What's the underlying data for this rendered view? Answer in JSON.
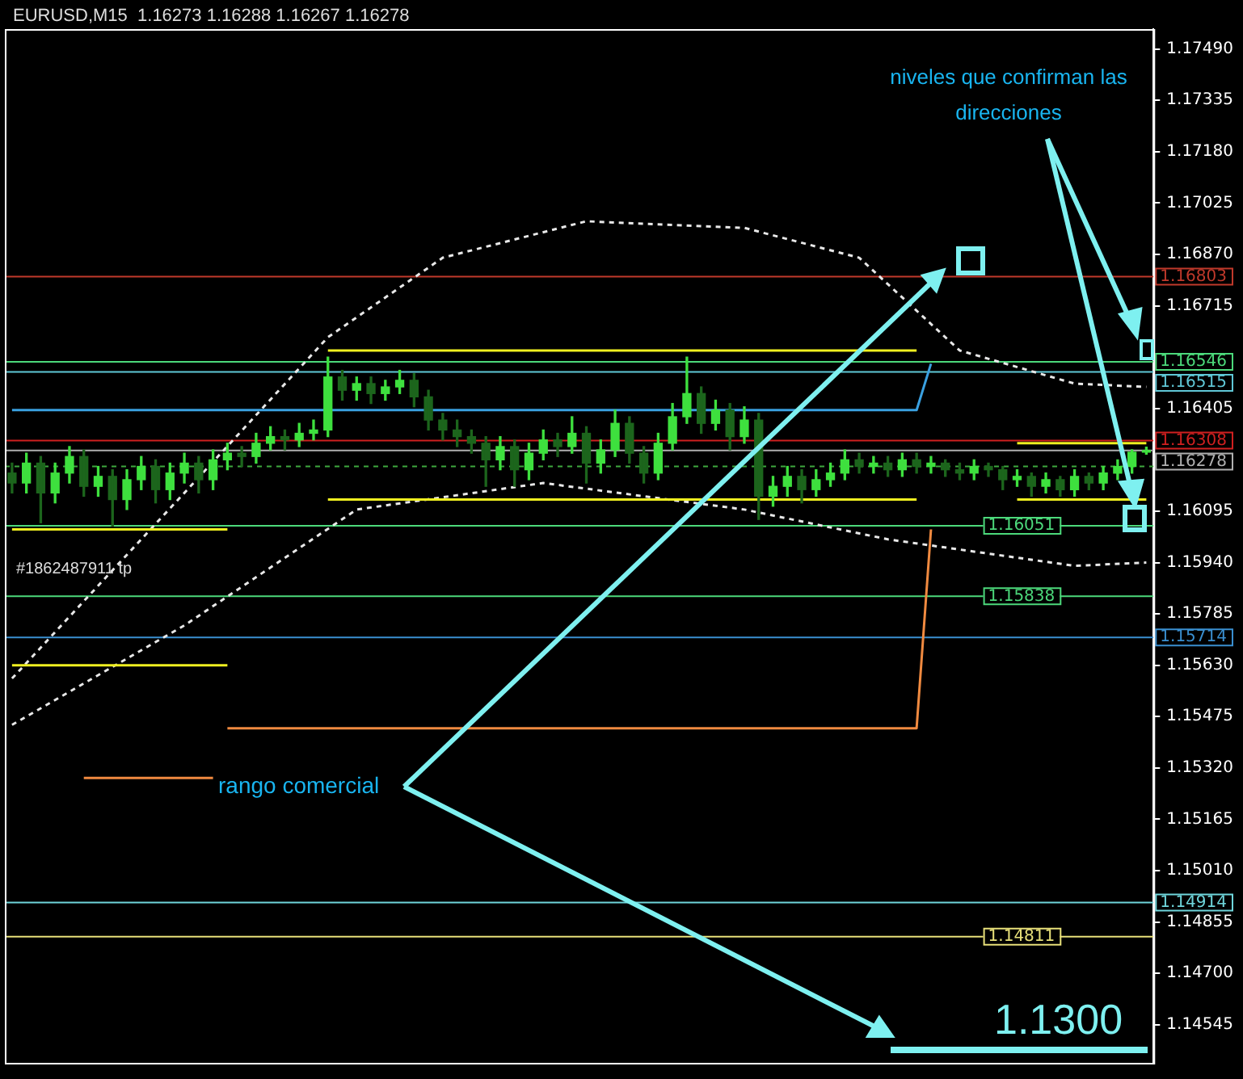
{
  "chart_data": {
    "type": "candlestick",
    "title": "EURUSD,M15  1.16273 1.16288 1.16267 1.16278",
    "colors": [
      "#1c651c",
      "#3ee03e",
      "#1c651c",
      "#3ee03e",
      "#3ee03e",
      "#1c651c",
      "#3ee03e",
      "#1c651c",
      "#3ee03e",
      "#3ee03e",
      "#1c651c",
      "#3ee03e",
      "#3ee03e",
      "#1c651c",
      "#3ee03e",
      "#3ee03e",
      "#1c651c",
      "#3ee03e",
      "#3ee03e",
      "#1c651c",
      "#3ee03e",
      "#3ee03e",
      "#3ee03e",
      "#1c651c",
      "#3ee03e",
      "#1c651c",
      "#3ee03e",
      "#3ee03e",
      "#1c651c",
      "#1c651c",
      "#1c651c",
      "#1c651c",
      "#1c651c",
      "#1c651c",
      "#3ee03e",
      "#1c651c",
      "#3ee03e",
      "#3ee03e",
      "#1c651c",
      "#3ee03e",
      "#1c651c",
      "#3ee03e",
      "#3ee03e",
      "#1c651c",
      "#1c651c",
      "#3ee03e",
      "#3ee03e",
      "#3ee03e",
      "#1c651c",
      "#3ee03e",
      "#1c651c",
      "#3ee03e",
      "#1c651c",
      "#3ee03e",
      "#3ee03e",
      "#1c651c",
      "#3ee03e",
      "#3ee03e",
      "#3ee03e",
      "#1c651c",
      "#3ee03e",
      "#1c651c",
      "#3ee03e",
      "#1c651c",
      "#3ee03e",
      "#1c651c",
      "#1c651c",
      "#3ee03e",
      "#1c651c",
      "#1c651c",
      "#3ee03e",
      "#1c651c",
      "#3ee03e",
      "#1c651c",
      "#3ee03e",
      "#1c651c",
      "#3ee03e",
      "#3ee03e",
      "#3ee03e",
      "#3ee03e"
    ],
    "categories": [
      null,
      null,
      null,
      null,
      null,
      null,
      null,
      null,
      null,
      null,
      null,
      null,
      null,
      null,
      null,
      null,
      null,
      null,
      null,
      null,
      null,
      null,
      null,
      null,
      null,
      null,
      null,
      null,
      null,
      null,
      null,
      null,
      null,
      null,
      null,
      null,
      null,
      null,
      null,
      null,
      null,
      null,
      null,
      null,
      null,
      null,
      null,
      null,
      null,
      null,
      null,
      null,
      null,
      null,
      null,
      null,
      null,
      null,
      null,
      null,
      null,
      null,
      null,
      null,
      null,
      null,
      null,
      null,
      null,
      null,
      null,
      null,
      null,
      null,
      null,
      null,
      null,
      null,
      null,
      null
    ],
    "ohlc": [
      [
        1.1621,
        1.1624,
        1.1615,
        1.1618
      ],
      [
        1.1618,
        1.1627,
        1.1615,
        1.1624
      ],
      [
        1.1624,
        1.1626,
        1.1606,
        1.1615
      ],
      [
        1.1615,
        1.1624,
        1.1612,
        1.1621
      ],
      [
        1.1621,
        1.1629,
        1.1618,
        1.1626
      ],
      [
        1.1626,
        1.1628,
        1.1614,
        1.1617
      ],
      [
        1.1617,
        1.1623,
        1.1614,
        1.162
      ],
      [
        1.162,
        1.1622,
        1.1605,
        1.1613
      ],
      [
        1.1613,
        1.1622,
        1.161,
        1.1619
      ],
      [
        1.1619,
        1.1626,
        1.1616,
        1.1623
      ],
      [
        1.1623,
        1.1625,
        1.1612,
        1.1616
      ],
      [
        1.1616,
        1.1624,
        1.1613,
        1.1621
      ],
      [
        1.1621,
        1.1627,
        1.1618,
        1.1624
      ],
      [
        1.1624,
        1.1626,
        1.1615,
        1.1619
      ],
      [
        1.1619,
        1.1628,
        1.1616,
        1.1625
      ],
      [
        1.1625,
        1.163,
        1.1622,
        1.1627
      ],
      [
        1.1627,
        1.1629,
        1.1623,
        1.1626
      ],
      [
        1.1626,
        1.1633,
        1.1624,
        1.163
      ],
      [
        1.163,
        1.1635,
        1.1628,
        1.1632
      ],
      [
        1.1632,
        1.1634,
        1.1628,
        1.1631
      ],
      [
        1.1631,
        1.1636,
        1.1629,
        1.1633
      ],
      [
        1.1633,
        1.1637,
        1.1631,
        1.1634
      ],
      [
        1.1634,
        1.1656,
        1.1632,
        1.165
      ],
      [
        1.165,
        1.1652,
        1.1643,
        1.1646
      ],
      [
        1.1646,
        1.165,
        1.1643,
        1.1648
      ],
      [
        1.1648,
        1.165,
        1.1642,
        1.1645
      ],
      [
        1.1645,
        1.1649,
        1.1643,
        1.1647
      ],
      [
        1.1647,
        1.1652,
        1.1645,
        1.1649
      ],
      [
        1.1649,
        1.1651,
        1.1641,
        1.1644
      ],
      [
        1.1644,
        1.1646,
        1.1634,
        1.1637
      ],
      [
        1.1637,
        1.1639,
        1.1631,
        1.1634
      ],
      [
        1.1634,
        1.1637,
        1.1629,
        1.1632
      ],
      [
        1.1632,
        1.1634,
        1.1627,
        1.163
      ],
      [
        1.163,
        1.1632,
        1.1617,
        1.1625
      ],
      [
        1.1625,
        1.1632,
        1.1622,
        1.1629
      ],
      [
        1.1629,
        1.1631,
        1.1617,
        1.1622
      ],
      [
        1.1622,
        1.163,
        1.1619,
        1.1627
      ],
      [
        1.1627,
        1.1634,
        1.1625,
        1.1631
      ],
      [
        1.1631,
        1.1633,
        1.1626,
        1.1629
      ],
      [
        1.1629,
        1.1638,
        1.1627,
        1.1633
      ],
      [
        1.1633,
        1.1635,
        1.1618,
        1.1624
      ],
      [
        1.1624,
        1.1631,
        1.1621,
        1.1628
      ],
      [
        1.1628,
        1.164,
        1.1626,
        1.1636
      ],
      [
        1.1636,
        1.1638,
        1.1624,
        1.1627
      ],
      [
        1.1627,
        1.1629,
        1.1618,
        1.1621
      ],
      [
        1.1621,
        1.1633,
        1.1619,
        1.163
      ],
      [
        1.163,
        1.1642,
        1.1628,
        1.1638
      ],
      [
        1.1638,
        1.1656,
        1.1636,
        1.1645
      ],
      [
        1.1645,
        1.1647,
        1.1633,
        1.1636
      ],
      [
        1.1636,
        1.1643,
        1.1634,
        1.164
      ],
      [
        1.164,
        1.1642,
        1.1628,
        1.1632
      ],
      [
        1.1632,
        1.1641,
        1.163,
        1.1637
      ],
      [
        1.1637,
        1.1639,
        1.1607,
        1.1614
      ],
      [
        1.1614,
        1.162,
        1.1611,
        1.1617
      ],
      [
        1.1617,
        1.1623,
        1.1614,
        1.162
      ],
      [
        1.162,
        1.1622,
        1.1612,
        1.1616
      ],
      [
        1.1616,
        1.1622,
        1.1614,
        1.1619
      ],
      [
        1.1619,
        1.1624,
        1.1617,
        1.1621
      ],
      [
        1.1621,
        1.1628,
        1.1619,
        1.1625
      ],
      [
        1.1625,
        1.1627,
        1.1621,
        1.1623
      ],
      [
        1.1623,
        1.1626,
        1.1621,
        1.1624
      ],
      [
        1.1624,
        1.1626,
        1.162,
        1.1622
      ],
      [
        1.1622,
        1.1627,
        1.162,
        1.1625
      ],
      [
        1.1625,
        1.1627,
        1.1621,
        1.1623
      ],
      [
        1.1623,
        1.1626,
        1.1621,
        1.1624
      ],
      [
        1.1624,
        1.1625,
        1.162,
        1.1622
      ],
      [
        1.1622,
        1.1624,
        1.1619,
        1.1621
      ],
      [
        1.1621,
        1.1625,
        1.1619,
        1.1623
      ],
      [
        1.1623,
        1.1624,
        1.162,
        1.1622
      ],
      [
        1.1622,
        1.1623,
        1.1616,
        1.1619
      ],
      [
        1.1619,
        1.1622,
        1.1617,
        1.162
      ],
      [
        1.162,
        1.1621,
        1.1614,
        1.1617
      ],
      [
        1.1617,
        1.1621,
        1.1615,
        1.1619
      ],
      [
        1.1619,
        1.162,
        1.1614,
        1.1616
      ],
      [
        1.1616,
        1.1622,
        1.1614,
        1.162
      ],
      [
        1.162,
        1.1621,
        1.1616,
        1.1618
      ],
      [
        1.1618,
        1.1623,
        1.1616,
        1.1621
      ],
      [
        1.1621,
        1.1625,
        1.1619,
        1.1623
      ],
      [
        1.1623,
        1.1628,
        1.1621,
        1.16273
      ],
      [
        1.16273,
        1.16288,
        1.16267,
        1.16278
      ]
    ],
    "series": [
      {
        "type": "line",
        "color": "#f0f020",
        "line_style": "solid",
        "values": [
          null,
          null,
          null,
          null,
          null,
          null,
          null,
          null,
          null,
          null,
          null,
          null,
          null,
          null,
          null,
          null,
          null,
          null,
          null,
          null,
          null,
          null,
          1.1658,
          1.1658,
          1.1658,
          1.1658,
          1.1658,
          1.1658,
          1.1658,
          1.1658,
          1.1658,
          1.1658,
          1.1658,
          1.1658,
          1.1658,
          1.1658,
          1.1658,
          1.1658,
          1.1658,
          1.1658,
          1.1658,
          1.1658,
          1.1658,
          1.1658,
          1.1658,
          1.1658,
          1.1658,
          1.1658,
          1.1658,
          1.1658,
          1.1658,
          1.1658,
          1.1658,
          1.1658,
          1.1658,
          1.1658,
          1.1658,
          1.1658,
          1.1658,
          1.1658,
          1.1658,
          1.1658,
          1.1658,
          1.1658,
          null,
          null,
          null,
          null,
          null,
          null,
          1.163,
          1.163,
          1.163,
          1.163,
          1.163,
          1.163,
          1.163,
          1.163,
          1.163,
          1.163
        ]
      },
      {
        "type": "line",
        "color": "#f0f020",
        "line_style": "solid",
        "values": [
          1.1604,
          1.1604,
          1.1604,
          1.1604,
          1.1604,
          1.1604,
          1.1604,
          1.1604,
          1.1604,
          1.1604,
          1.1604,
          1.1604,
          1.1604,
          1.1604,
          1.1604,
          1.1604,
          null,
          null,
          null,
          null,
          null,
          null,
          1.1613,
          1.1613,
          1.1613,
          1.1613,
          1.1613,
          1.1613,
          1.1613,
          1.1613,
          1.1613,
          1.1613,
          1.1613,
          1.1613,
          1.1613,
          1.1613,
          1.1613,
          1.1613,
          1.1613,
          1.1613,
          1.1613,
          1.1613,
          1.1613,
          1.1613,
          1.1613,
          1.1613,
          1.1613,
          1.1613,
          1.1613,
          1.1613,
          1.1613,
          1.1613,
          1.1613,
          1.1613,
          1.1613,
          1.1613,
          1.1613,
          1.1613,
          1.1613,
          1.1613,
          1.1613,
          1.1613,
          1.1613,
          1.1613,
          null,
          null,
          null,
          null,
          null,
          null,
          1.1613,
          1.1613,
          1.1613,
          1.1613,
          1.1613,
          1.1613,
          1.1613,
          1.1613,
          1.1613,
          1.1613
        ]
      },
      {
        "type": "line",
        "color": "#f0f020",
        "line_style": "solid",
        "values": [
          1.1563,
          1.1563,
          1.1563,
          1.1563,
          1.1563,
          1.1563,
          1.1563,
          1.1563,
          1.1563,
          1.1563,
          1.1563,
          1.1563,
          1.1563,
          1.1563,
          1.1563,
          1.1563,
          null,
          null,
          null,
          null,
          null,
          null,
          null,
          null,
          null,
          null,
          null,
          null,
          null,
          null,
          null,
          null,
          null,
          null,
          null,
          null,
          null,
          null,
          null,
          null,
          null,
          null,
          null,
          null,
          null,
          null,
          null,
          null,
          null,
          null,
          null,
          null,
          null,
          null,
          null,
          null,
          null,
          null,
          null,
          null,
          null,
          null,
          null,
          null,
          null,
          null,
          null,
          null,
          null,
          null,
          null,
          null,
          null,
          null,
          null,
          null,
          null,
          null,
          null,
          null
        ]
      },
      {
        "type": "line",
        "color": "#3aa0e0",
        "line_style": "solid",
        "values": [
          1.164,
          1.164,
          1.164,
          1.164,
          1.164,
          1.164,
          1.164,
          1.164,
          1.164,
          1.164,
          1.164,
          1.164,
          1.164,
          1.164,
          1.164,
          1.164,
          1.164,
          1.164,
          1.164,
          1.164,
          1.164,
          1.164,
          1.164,
          1.164,
          1.164,
          1.164,
          1.164,
          1.164,
          1.164,
          1.164,
          1.164,
          1.164,
          1.164,
          1.164,
          1.164,
          1.164,
          1.164,
          1.164,
          1.164,
          1.164,
          1.164,
          1.164,
          1.164,
          1.164,
          1.164,
          1.164,
          1.164,
          1.164,
          1.164,
          1.164,
          1.164,
          1.164,
          1.164,
          1.164,
          1.164,
          1.164,
          1.164,
          1.164,
          1.164,
          1.164,
          1.164,
          1.164,
          1.164,
          1.164,
          1.1654,
          null,
          null,
          null,
          null,
          null,
          null,
          null,
          null,
          null,
          null,
          null,
          null,
          null,
          null,
          null
        ]
      },
      {
        "type": "line",
        "color": "#f08a40",
        "line_style": "solid",
        "values": [
          null,
          null,
          null,
          null,
          null,
          null,
          null,
          null,
          null,
          null,
          null,
          null,
          null,
          null,
          null,
          1.1544,
          1.1544,
          1.1544,
          1.1544,
          1.1544,
          1.1544,
          1.1544,
          1.1544,
          1.1544,
          1.1544,
          1.1544,
          1.1544,
          1.1544,
          1.1544,
          1.1544,
          1.1544,
          1.1544,
          1.1544,
          1.1544,
          1.1544,
          1.1544,
          1.1544,
          1.1544,
          1.1544,
          1.1544,
          1.1544,
          1.1544,
          1.1544,
          1.1544,
          1.1544,
          1.1544,
          1.1544,
          1.1544,
          1.1544,
          1.1544,
          1.1544,
          1.1544,
          1.1544,
          1.1544,
          1.1544,
          1.1544,
          1.1544,
          1.1544,
          1.1544,
          1.1544,
          1.1544,
          1.1544,
          1.1544,
          1.1544,
          1.1604,
          null,
          null,
          null,
          null,
          null,
          null,
          null,
          null,
          null,
          null,
          null,
          null,
          null,
          null,
          null
        ]
      },
      {
        "type": "line",
        "color": "#f08a40",
        "line_style": "solid",
        "values": [
          null,
          null,
          null,
          null,
          null,
          1.1529,
          1.1529,
          1.1529,
          1.1529,
          1.1529,
          1.1529,
          1.1529,
          1.1529,
          1.1529,
          1.1529,
          null,
          null,
          null,
          null,
          null,
          null,
          null,
          null,
          null,
          null,
          null,
          null,
          null,
          null,
          null,
          null,
          null,
          null,
          null,
          null,
          null,
          null,
          null,
          null,
          null,
          null,
          null,
          null,
          null,
          null,
          null,
          null,
          null,
          null,
          null,
          null,
          null,
          null,
          null,
          null,
          null,
          null,
          null,
          null,
          null,
          null,
          null,
          null,
          null,
          null,
          null,
          null,
          null,
          null,
          null,
          null,
          null,
          null,
          null,
          null,
          null,
          null,
          null,
          null,
          null
        ]
      },
      {
        "type": "line",
        "color": "#e8e8e8",
        "line_style": "dashed",
        "values": [
          1.1559,
          null,
          null,
          null,
          null,
          null,
          null,
          null,
          null,
          null,
          null,
          null,
          1.1615,
          null,
          null,
          null,
          null,
          null,
          null,
          null,
          null,
          null,
          1.1662,
          null,
          null,
          null,
          null,
          null,
          null,
          null,
          1.1686,
          null,
          null,
          null,
          null,
          null,
          null,
          null,
          null,
          null,
          1.1697,
          null,
          null,
          null,
          null,
          null,
          null,
          null,
          null,
          null,
          null,
          1.1695,
          null,
          null,
          null,
          null,
          null,
          null,
          null,
          1.1686,
          null,
          null,
          null,
          null,
          null,
          null,
          1.1658,
          null,
          null,
          null,
          null,
          null,
          null,
          null,
          1.1648,
          null,
          null,
          null,
          null,
          1.1647
        ]
      },
      {
        "type": "line",
        "color": "#e8e8e8",
        "line_style": "dashed",
        "values": [
          1.1545,
          null,
          null,
          null,
          null,
          null,
          null,
          null,
          null,
          null,
          null,
          null,
          1.1575,
          null,
          null,
          null,
          null,
          null,
          null,
          null,
          null,
          null,
          null,
          null,
          1.161,
          null,
          null,
          null,
          null,
          null,
          null,
          null,
          null,
          null,
          null,
          null,
          null,
          1.1618,
          null,
          null,
          null,
          null,
          null,
          null,
          null,
          null,
          null,
          null,
          null,
          null,
          null,
          1.161,
          null,
          null,
          null,
          null,
          null,
          null,
          null,
          null,
          null,
          1.1601,
          null,
          null,
          null,
          null,
          null,
          null,
          null,
          null,
          null,
          null,
          null,
          null,
          1.1593,
          null,
          null,
          null,
          null,
          1.1594
        ]
      }
    ],
    "ref_lines": [
      {
        "axis": "y",
        "value": 1.16803,
        "label": "1.16803",
        "color": "#c0392b"
      },
      {
        "axis": "y",
        "value": 1.16546,
        "label": "1.16546",
        "color": "#4cd97b"
      },
      {
        "axis": "y",
        "value": 1.16515,
        "label": "1.16515",
        "color": "#5fc7d6"
      },
      {
        "axis": "y",
        "value": 1.16308,
        "label": "1.16308",
        "color": "#d02020"
      },
      {
        "axis": "y",
        "value": 1.16278,
        "label": "1.16278",
        "color": "#b0b0b0"
      },
      {
        "axis": "y",
        "value": 1.1623,
        "color": "#3ea83e",
        "line_style": "dashed"
      },
      {
        "axis": "y",
        "value": 1.16051,
        "label": "1.16051",
        "color": "#4cd97b"
      },
      {
        "axis": "y",
        "value": 1.15838,
        "label": "1.15838",
        "color": "#4cd97b"
      },
      {
        "axis": "y",
        "value": 1.15714,
        "label": "1.15714",
        "color": "#3a8fd0"
      },
      {
        "axis": "y",
        "value": 1.14914,
        "label": "1.14914",
        "color": "#6fd6dc"
      },
      {
        "axis": "y",
        "value": 1.14811,
        "label": "1.14811",
        "color": "#e8e07a"
      }
    ],
    "annotations": [
      "niveles que confirman las direcciones",
      "rango comercial",
      "1.1300",
      "#1862487911 tp"
    ],
    "ylim": [
      1.1443,
      1.1755
    ],
    "yticks": [
      {
        "value": 1.1749,
        "label": "1.17490"
      },
      {
        "value": 1.17335,
        "label": "1.17335"
      },
      {
        "value": 1.1718,
        "label": "1.17180"
      },
      {
        "value": 1.17025,
        "label": "1.17025"
      },
      {
        "value": 1.1687,
        "label": "1.16870"
      },
      {
        "value": 1.16715,
        "label": "1.16715"
      },
      {
        "value": 1.16405,
        "label": "1.16405"
      },
      {
        "value": 1.16095,
        "label": "1.16095"
      },
      {
        "value": 1.1594,
        "label": "1.15940"
      },
      {
        "value": 1.15785,
        "label": "1.15785"
      },
      {
        "value": 1.1563,
        "label": "1.15630"
      },
      {
        "value": 1.15475,
        "label": "1.15475"
      },
      {
        "value": 1.1532,
        "label": "1.15320"
      },
      {
        "value": 1.15165,
        "label": "1.15165"
      },
      {
        "value": 1.1501,
        "label": "1.15010"
      },
      {
        "value": 1.14855,
        "label": "1.14855"
      },
      {
        "value": 1.147,
        "label": "1.14700"
      },
      {
        "value": 1.14545,
        "label": "1.14545"
      }
    ],
    "grid": false,
    "legend": false,
    "marker": "none"
  }
}
